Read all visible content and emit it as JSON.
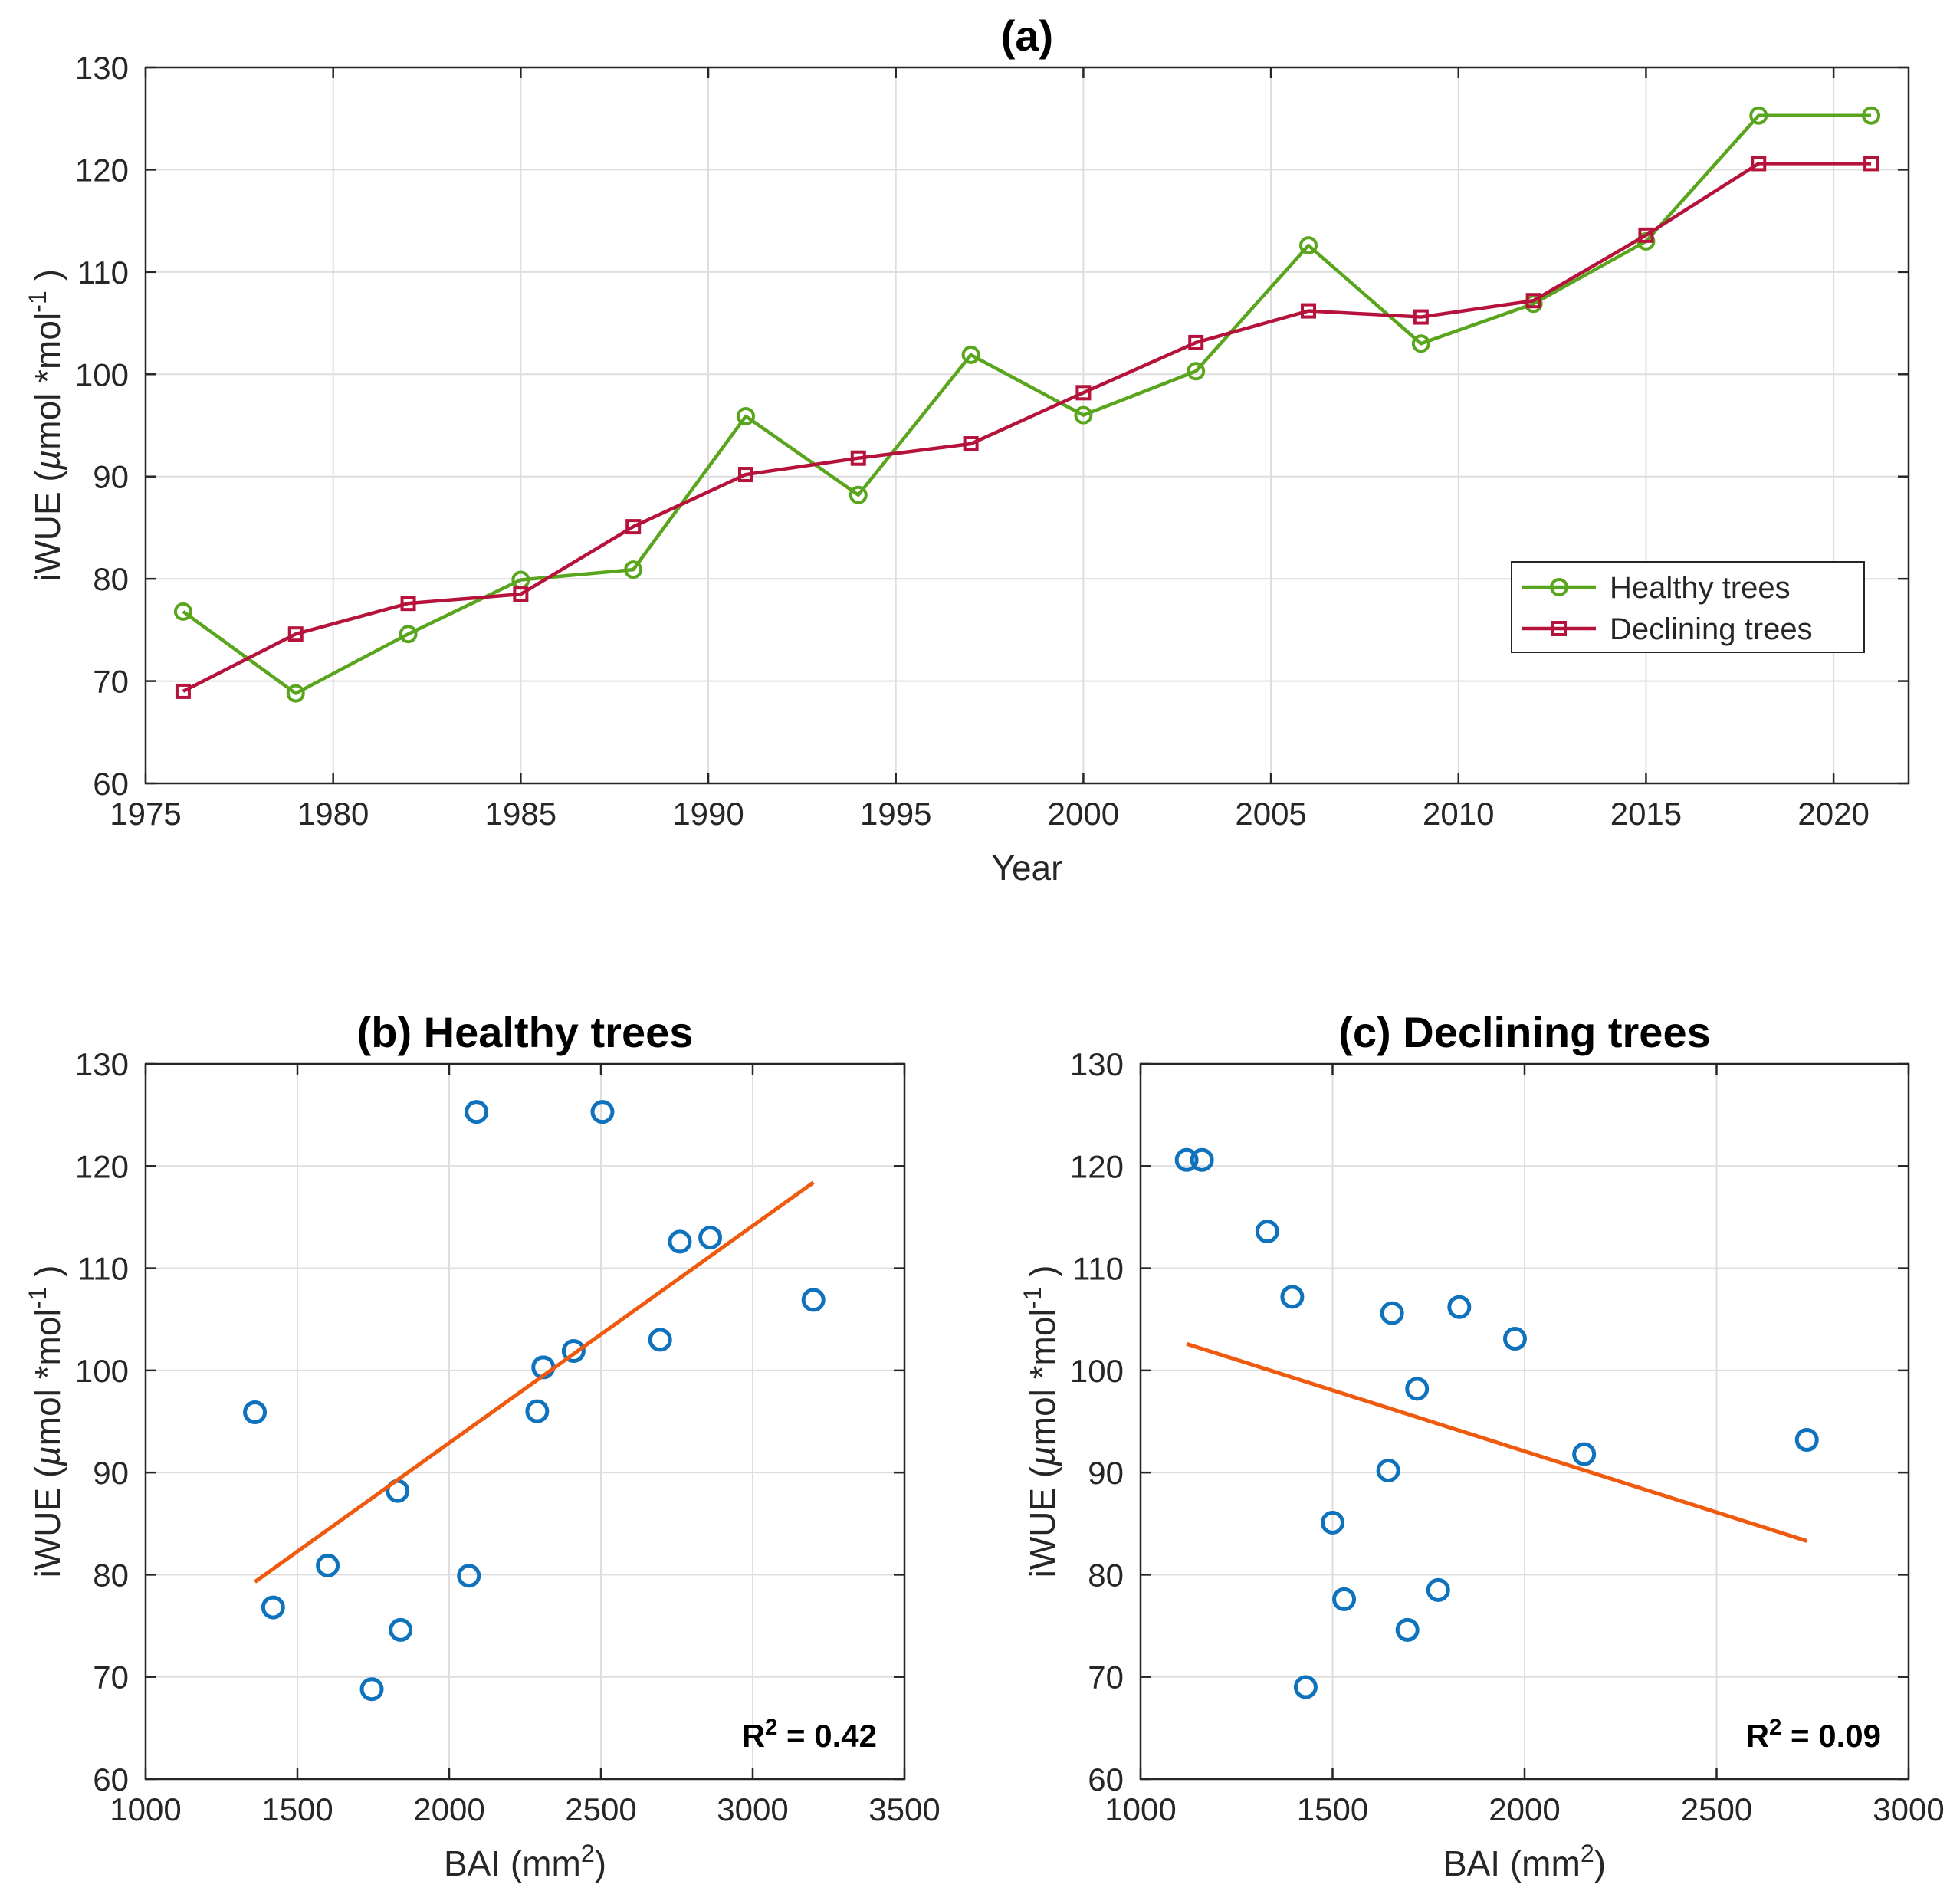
{
  "colors": {
    "healthy": "#5aa51e",
    "declining": "#b5123c",
    "scatter": "#0f72bd",
    "fit": "#f05a0f",
    "grid": "#dedede",
    "axis": "#262626"
  },
  "chart_data": [
    {
      "id": "a",
      "type": "line",
      "title": "(a)",
      "xlabel": "Year",
      "ylabel": "iWUE (µmol *mol⁻¹ )",
      "xlim": [
        1975,
        2022
      ],
      "ylim": [
        60,
        130
      ],
      "xticks": [
        1975,
        1980,
        1985,
        1990,
        1995,
        2000,
        2005,
        2010,
        2015,
        2020
      ],
      "yticks": [
        60,
        70,
        80,
        90,
        100,
        110,
        120,
        130
      ],
      "grid": true,
      "legend_position": "lower-right",
      "x": [
        1976,
        1979,
        1982,
        1985,
        1988,
        1991,
        1994,
        1997,
        2000,
        2003,
        2006,
        2009,
        2012,
        2015,
        2018,
        2021
      ],
      "series": [
        {
          "name": "Healthy trees",
          "marker": "circle",
          "color_key": "healthy",
          "values": [
            76.8,
            68.8,
            74.6,
            79.9,
            80.9,
            95.9,
            88.2,
            101.9,
            96.0,
            100.3,
            112.6,
            103.0,
            106.9,
            113.0,
            125.3,
            125.3
          ]
        },
        {
          "name": "Declining trees",
          "marker": "square",
          "color_key": "declining",
          "values": [
            69.0,
            74.6,
            77.6,
            78.5,
            85.1,
            90.2,
            91.8,
            93.2,
            98.2,
            103.1,
            106.2,
            105.6,
            107.2,
            113.6,
            120.6,
            120.6
          ]
        }
      ]
    },
    {
      "id": "b",
      "type": "scatter",
      "title": "(b) Healthy trees",
      "xlabel": "BAI (mm²)",
      "ylabel": "iWUE (µmol *mol⁻¹ )",
      "xlim": [
        1000,
        3500
      ],
      "ylim": [
        60,
        130
      ],
      "xticks": [
        1000,
        1500,
        2000,
        2500,
        3000,
        3500
      ],
      "yticks": [
        60,
        70,
        80,
        90,
        100,
        110,
        120,
        130
      ],
      "grid": true,
      "annotation": "R² = 0.42",
      "points": {
        "x": [
          1360,
          1420,
          1600,
          1745,
          1830,
          1840,
          2065,
          2090,
          2290,
          2310,
          2410,
          2505,
          2695,
          2760,
          2860,
          3200
        ],
        "y": [
          95.9,
          76.8,
          80.9,
          68.8,
          88.2,
          74.6,
          79.9,
          125.3,
          96.0,
          100.3,
          101.9,
          125.3,
          103.0,
          112.6,
          113.0,
          106.9
        ]
      },
      "fit": {
        "x": [
          1360,
          3200
        ],
        "y": [
          79.3,
          118.4
        ]
      }
    },
    {
      "id": "c",
      "type": "scatter",
      "title": "(c) Declining trees",
      "xlabel": "BAI (mm²)",
      "ylabel": "iWUE (µmol *mol⁻¹ )",
      "xlim": [
        1000,
        3000
      ],
      "ylim": [
        60,
        130
      ],
      "xticks": [
        1000,
        1500,
        2000,
        2500,
        3000
      ],
      "yticks": [
        60,
        70,
        80,
        90,
        100,
        110,
        120,
        130
      ],
      "grid": true,
      "annotation": "R² = 0.09",
      "points": {
        "x": [
          1120,
          1160,
          1330,
          1395,
          1430,
          1500,
          1530,
          1645,
          1655,
          1695,
          1720,
          1775,
          1830,
          1975,
          2155,
          2735
        ],
        "y": [
          120.6,
          120.6,
          113.6,
          107.2,
          69.0,
          85.1,
          77.6,
          90.2,
          105.6,
          74.6,
          98.2,
          78.5,
          106.2,
          103.1,
          91.8,
          93.2
        ]
      },
      "fit": {
        "x": [
          1120,
          2735
        ],
        "y": [
          102.6,
          83.3
        ]
      }
    }
  ]
}
